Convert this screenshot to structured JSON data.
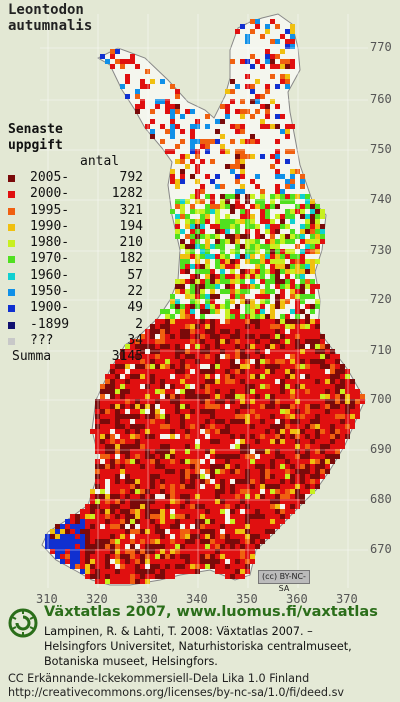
{
  "title": {
    "line1": "Leontodon",
    "line2": "autumnalis"
  },
  "legend": {
    "heading1": "Senaste",
    "heading2": "uppgift",
    "count_header": "antal",
    "rows": [
      {
        "label": "2005-",
        "count": "792",
        "color": "#7a0a0a"
      },
      {
        "label": "2000-",
        "count": "1282",
        "color": "#e01010"
      },
      {
        "label": "1995-",
        "count": "321",
        "color": "#f06010"
      },
      {
        "label": "1990-",
        "count": "194",
        "color": "#f0c010"
      },
      {
        "label": "1980-",
        "count": "210",
        "color": "#c8f020"
      },
      {
        "label": "1970-",
        "count": "182",
        "color": "#50e020"
      },
      {
        "label": "1960-",
        "count": "57",
        "color": "#10d0d0"
      },
      {
        "label": "1950-",
        "count": "22",
        "color": "#1090e8"
      },
      {
        "label": "1900-",
        "count": "49",
        "color": "#1030d0"
      },
      {
        "label": "-1899",
        "count": "2",
        "color": "#101070"
      },
      {
        "label": "???",
        "count": "34",
        "color": "#c8c8c8"
      }
    ],
    "total_label": "Summa",
    "total_count": "3145"
  },
  "axes": {
    "northing_ticks": [
      "770",
      "760",
      "750",
      "740",
      "730",
      "720",
      "710",
      "700",
      "690",
      "680",
      "670"
    ],
    "easting_ticks": [
      "310",
      "320",
      "330",
      "340",
      "350",
      "360",
      "370"
    ]
  },
  "cc_badge": "(cc) BY-NC-SA",
  "footer": {
    "brand": "Växtatlas 2007, www.luomus.fi/vaxtatlas",
    "citation_line1": "Lampinen, R. & Lahti, T. 2008: Växtatlas 2007. –",
    "citation_line2": "Helsingfors Universitet, Naturhistoriska centralmuseet,",
    "citation_line3": "Botaniska museet, Helsingfors.",
    "license_line1": "CC Erkännande-Ickekommersiell-Dela Lika 1.0 Finland",
    "license_line2": "http://creativecommons.org/licenses/by-nc-sa/1.0/fi/deed.sv"
  },
  "colors": {
    "background": "#e4e9d6",
    "land": "#f4f6ee",
    "brand_green": "#2b6e1a"
  },
  "icons": [
    "luomus-logo-icon",
    "cc-license-icon"
  ]
}
